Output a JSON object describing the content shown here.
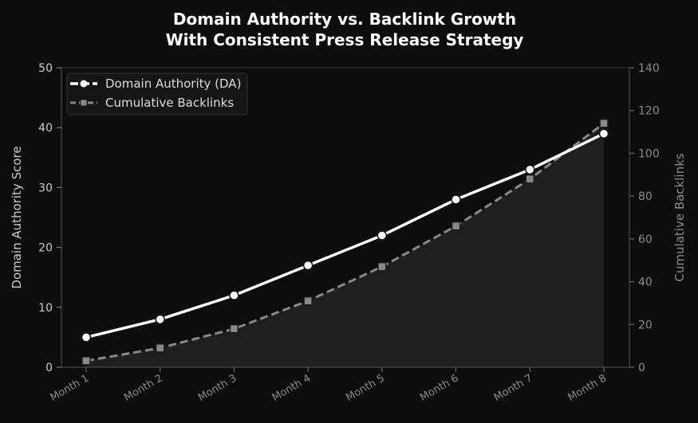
{
  "chart_data": {
    "type": "line",
    "title": "Domain Authority vs. Backlink Growth\nWith Consistent Press Release Strategy",
    "title_lines": [
      "Domain Authority vs. Backlink Growth",
      "With Consistent Press Release Strategy"
    ],
    "categories": [
      "Month 1",
      "Month 2",
      "Month 3",
      "Month 4",
      "Month 5",
      "Month 6",
      "Month 7",
      "Month 8"
    ],
    "series": [
      {
        "name": "Domain Authority (DA)",
        "axis": "left",
        "style": "solid line, circle markers",
        "color": "#ffffff",
        "values": [
          5,
          8,
          12,
          17,
          22,
          28,
          33,
          39
        ]
      },
      {
        "name": "Cumulative Backlinks",
        "axis": "right",
        "style": "dashed line, square markers, filled area",
        "color": "#888888",
        "values": [
          3,
          9,
          18,
          31,
          47,
          66,
          88,
          114
        ]
      }
    ],
    "xlabel": "",
    "ylabel": "Domain Authority Score",
    "ylabel_right": "Cumulative Backlinks",
    "ylim": [
      0,
      50
    ],
    "ylim_right": [
      0,
      140
    ],
    "yticks": [
      0,
      10,
      20,
      30,
      40,
      50
    ],
    "yticks_right": [
      0,
      20,
      40,
      60,
      80,
      100,
      120,
      140
    ],
    "grid": false,
    "legend_position": "upper left"
  },
  "colors": {
    "background": "#0d0d0d",
    "da_line": "#ffffff",
    "backlinks_line": "#888888",
    "area_fill": "#1f1f1f",
    "axis": "#444444"
  }
}
